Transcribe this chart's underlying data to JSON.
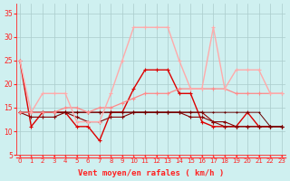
{
  "title": "",
  "xlabel": "Vent moyen/en rafales ( km/h )",
  "ylabel": "",
  "background_color": "#cff0f0",
  "grid_color": "#aacccc",
  "x": [
    0,
    1,
    2,
    3,
    4,
    5,
    6,
    7,
    8,
    9,
    10,
    11,
    12,
    13,
    14,
    15,
    16,
    17,
    18,
    19,
    20,
    21,
    22,
    23
  ],
  "series": [
    {
      "y": [
        25,
        11,
        14,
        14,
        14,
        11,
        11,
        8,
        14,
        14,
        19,
        23,
        23,
        23,
        18,
        18,
        12,
        11,
        11,
        11,
        14,
        11,
        11,
        11
      ],
      "color": "#dd0000",
      "marker": "+",
      "markersize": 3.0,
      "linewidth": 1.0
    },
    {
      "y": [
        14,
        14,
        14,
        14,
        14,
        14,
        14,
        14,
        14,
        14,
        14,
        14,
        14,
        14,
        14,
        14,
        14,
        12,
        11,
        11,
        11,
        11,
        11,
        11
      ],
      "color": "#990000",
      "marker": "+",
      "markersize": 2.5,
      "linewidth": 0.8
    },
    {
      "y": [
        14,
        13,
        13,
        13,
        14,
        13,
        12,
        12,
        13,
        13,
        14,
        14,
        14,
        14,
        14,
        13,
        13,
        12,
        12,
        11,
        11,
        11,
        11,
        11
      ],
      "color": "#880000",
      "marker": "+",
      "markersize": 2.5,
      "linewidth": 0.8
    },
    {
      "y": [
        14,
        14,
        14,
        14,
        14,
        14,
        14,
        14,
        14,
        14,
        14,
        14,
        14,
        14,
        14,
        14,
        14,
        14,
        14,
        14,
        14,
        14,
        11,
        11
      ],
      "color": "#660000",
      "marker": "+",
      "markersize": 2.0,
      "linewidth": 0.7
    },
    {
      "y": [
        14,
        14,
        14,
        14,
        15,
        15,
        14,
        15,
        15,
        16,
        17,
        18,
        18,
        18,
        19,
        19,
        19,
        19,
        19,
        18,
        18,
        18,
        18,
        18
      ],
      "color": "#ff8888",
      "marker": "+",
      "markersize": 2.5,
      "linewidth": 0.9
    },
    {
      "y": [
        25,
        14,
        18,
        18,
        18,
        12,
        12,
        12,
        18,
        25,
        32,
        32,
        32,
        32,
        25,
        19,
        19,
        32,
        19,
        23,
        23,
        23,
        18,
        18
      ],
      "color": "#ffaaaa",
      "marker": "+",
      "markersize": 3.0,
      "linewidth": 1.0
    }
  ],
  "ylim": [
    5,
    37
  ],
  "yticks": [
    5,
    10,
    15,
    20,
    25,
    30,
    35
  ],
  "xlim": [
    -0.3,
    23.3
  ],
  "xticks": [
    0,
    1,
    2,
    3,
    4,
    5,
    6,
    7,
    8,
    9,
    10,
    11,
    12,
    13,
    14,
    15,
    16,
    17,
    18,
    19,
    20,
    21,
    22,
    23
  ],
  "arrow_color": "#ff4444",
  "tick_color": "#ff2222",
  "label_color": "#ff2222",
  "fontsize": 5.5,
  "xlabel_fontsize": 6.5
}
